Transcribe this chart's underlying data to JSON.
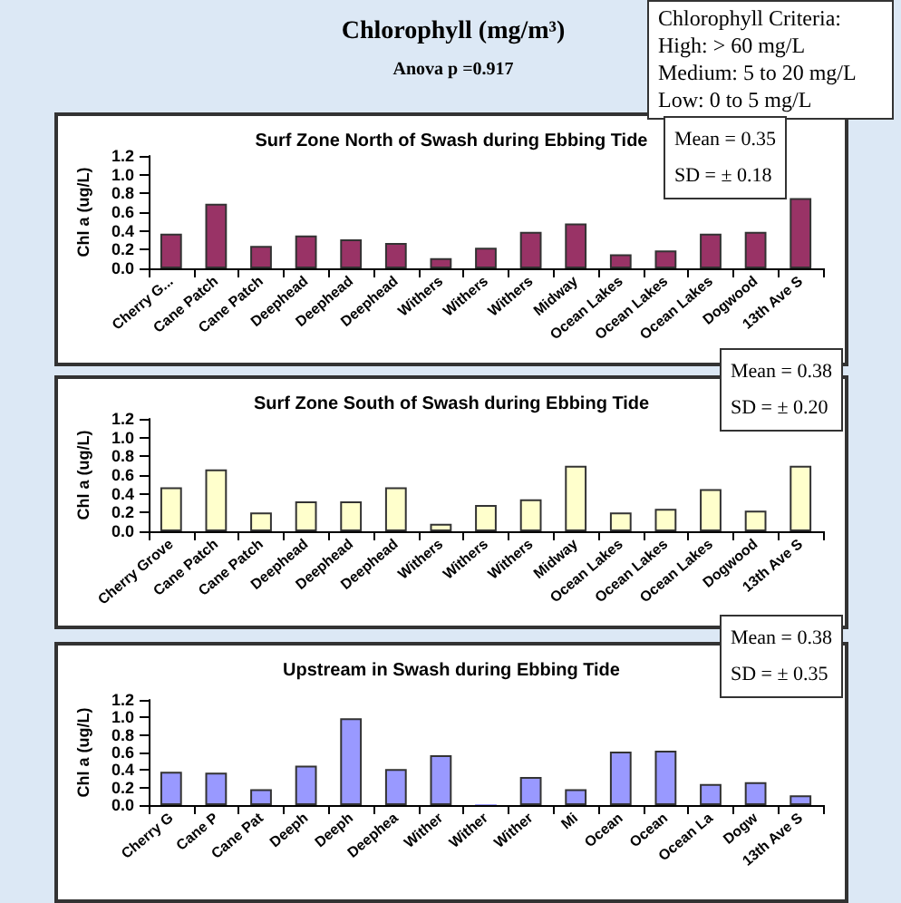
{
  "chart_data": [
    {
      "type": "other",
      "title": "Chlorophyll (mg/m³)",
      "subtitle": "Anova p =0.917",
      "annotations": [
        "Chlorophyll Criteria:",
        "High: > 60 mg/L",
        "Medium: 5 to 20 mg/L",
        "Low: 0 to 5 mg/L"
      ]
    },
    {
      "type": "bar",
      "title": "Surf Zone North of Swash during Ebbing Tide",
      "ylabel": "Chl a (ug/L)",
      "categories": [
        "Cherry G...",
        "Cane Patch",
        "Cane Patch",
        "Deephead",
        "Deephead",
        "Deephead",
        "Withers",
        "Withers",
        "Withers",
        "Midway",
        "Ocean Lakes",
        "Ocean Lakes",
        "Ocean Lakes",
        "Dogwood",
        "13th Ave S"
      ],
      "series": [
        {
          "color": "#993366",
          "values": [
            0.37,
            0.69,
            0.24,
            0.35,
            0.31,
            0.27,
            0.11,
            0.22,
            0.39,
            0.48,
            0.15,
            0.19,
            0.37,
            0.39,
            0.75
          ]
        }
      ],
      "ylim": [
        0,
        1.2
      ],
      "yticks": [
        {
          "value": 0,
          "label": "0.0"
        },
        {
          "value": 0.2,
          "label": "0.2"
        },
        {
          "value": 0.4,
          "label": "0.4"
        },
        {
          "value": 0.6,
          "label": "0.6"
        },
        {
          "value": 0.8,
          "label": "0.8"
        },
        {
          "value": 1,
          "label": "1.0"
        },
        {
          "value": 1.2,
          "label": "1.2"
        }
      ],
      "grid": false,
      "annotations": [
        "Mean = 0.35",
        "SD = ± 0.18"
      ]
    },
    {
      "type": "bar",
      "title": "Surf Zone South of Swash during Ebbing Tide",
      "ylabel": "Chl a (ug/L)",
      "categories": [
        "Cherry Grove",
        "Cane Patch",
        "Cane Patch",
        "Deephead",
        "Deephead",
        "Deephead",
        "Withers",
        "Withers",
        "Withers",
        "Midway",
        "Ocean Lakes",
        "Ocean Lakes",
        "Ocean Lakes",
        "Dogwood",
        "13th Ave S"
      ],
      "series": [
        {
          "color": "#ffffcc",
          "values": [
            0.47,
            0.66,
            0.2,
            0.32,
            0.32,
            0.47,
            0.08,
            0.28,
            0.34,
            0.7,
            0.2,
            0.24,
            0.45,
            0.22,
            0.7
          ]
        }
      ],
      "ylim": [
        0,
        1.2
      ],
      "yticks": [
        {
          "value": 0,
          "label": "0.0"
        },
        {
          "value": 0.2,
          "label": "0.2"
        },
        {
          "value": 0.4,
          "label": "0.4"
        },
        {
          "value": 0.6,
          "label": "0.6"
        },
        {
          "value": 0.8,
          "label": "0.8"
        },
        {
          "value": 1,
          "label": "1.0"
        },
        {
          "value": 1.2,
          "label": "1.2"
        }
      ],
      "grid": false,
      "annotations": [
        "Mean = 0.38",
        "SD = ± 0.20"
      ]
    },
    {
      "type": "bar",
      "title": "Upstream in Swash during Ebbing Tide",
      "ylabel": "Chl a (ug/L)",
      "categories": [
        "Cherry G",
        "Cane P",
        "Cane Pat",
        "Deeph",
        "Deeph",
        "Deephea",
        "Wither",
        "Wither",
        "Wither",
        "Mi",
        "Ocean",
        "Ocean",
        "Ocean La",
        "Dogw",
        "13th Ave S"
      ],
      "series": [
        {
          "color": "#9999ff",
          "values": [
            0.38,
            0.37,
            0.18,
            0.45,
            0.99,
            0.41,
            0.57,
            0.01,
            0.32,
            0.18,
            0.61,
            0.62,
            0.24,
            0.26,
            0.11
          ]
        }
      ],
      "ylim": [
        0,
        1.2
      ],
      "yticks": [
        {
          "value": 0,
          "label": "0.0"
        },
        {
          "value": 0.2,
          "label": "0.2"
        },
        {
          "value": 0.4,
          "label": "0.4"
        },
        {
          "value": 0.6,
          "label": "0.6"
        },
        {
          "value": 0.8,
          "label": "0.8"
        },
        {
          "value": 1,
          "label": "1.0"
        },
        {
          "value": 1.2,
          "label": "1.2"
        }
      ],
      "grid": false,
      "annotations": [
        "Mean = 0.38",
        "SD = ± 0.35"
      ]
    }
  ]
}
